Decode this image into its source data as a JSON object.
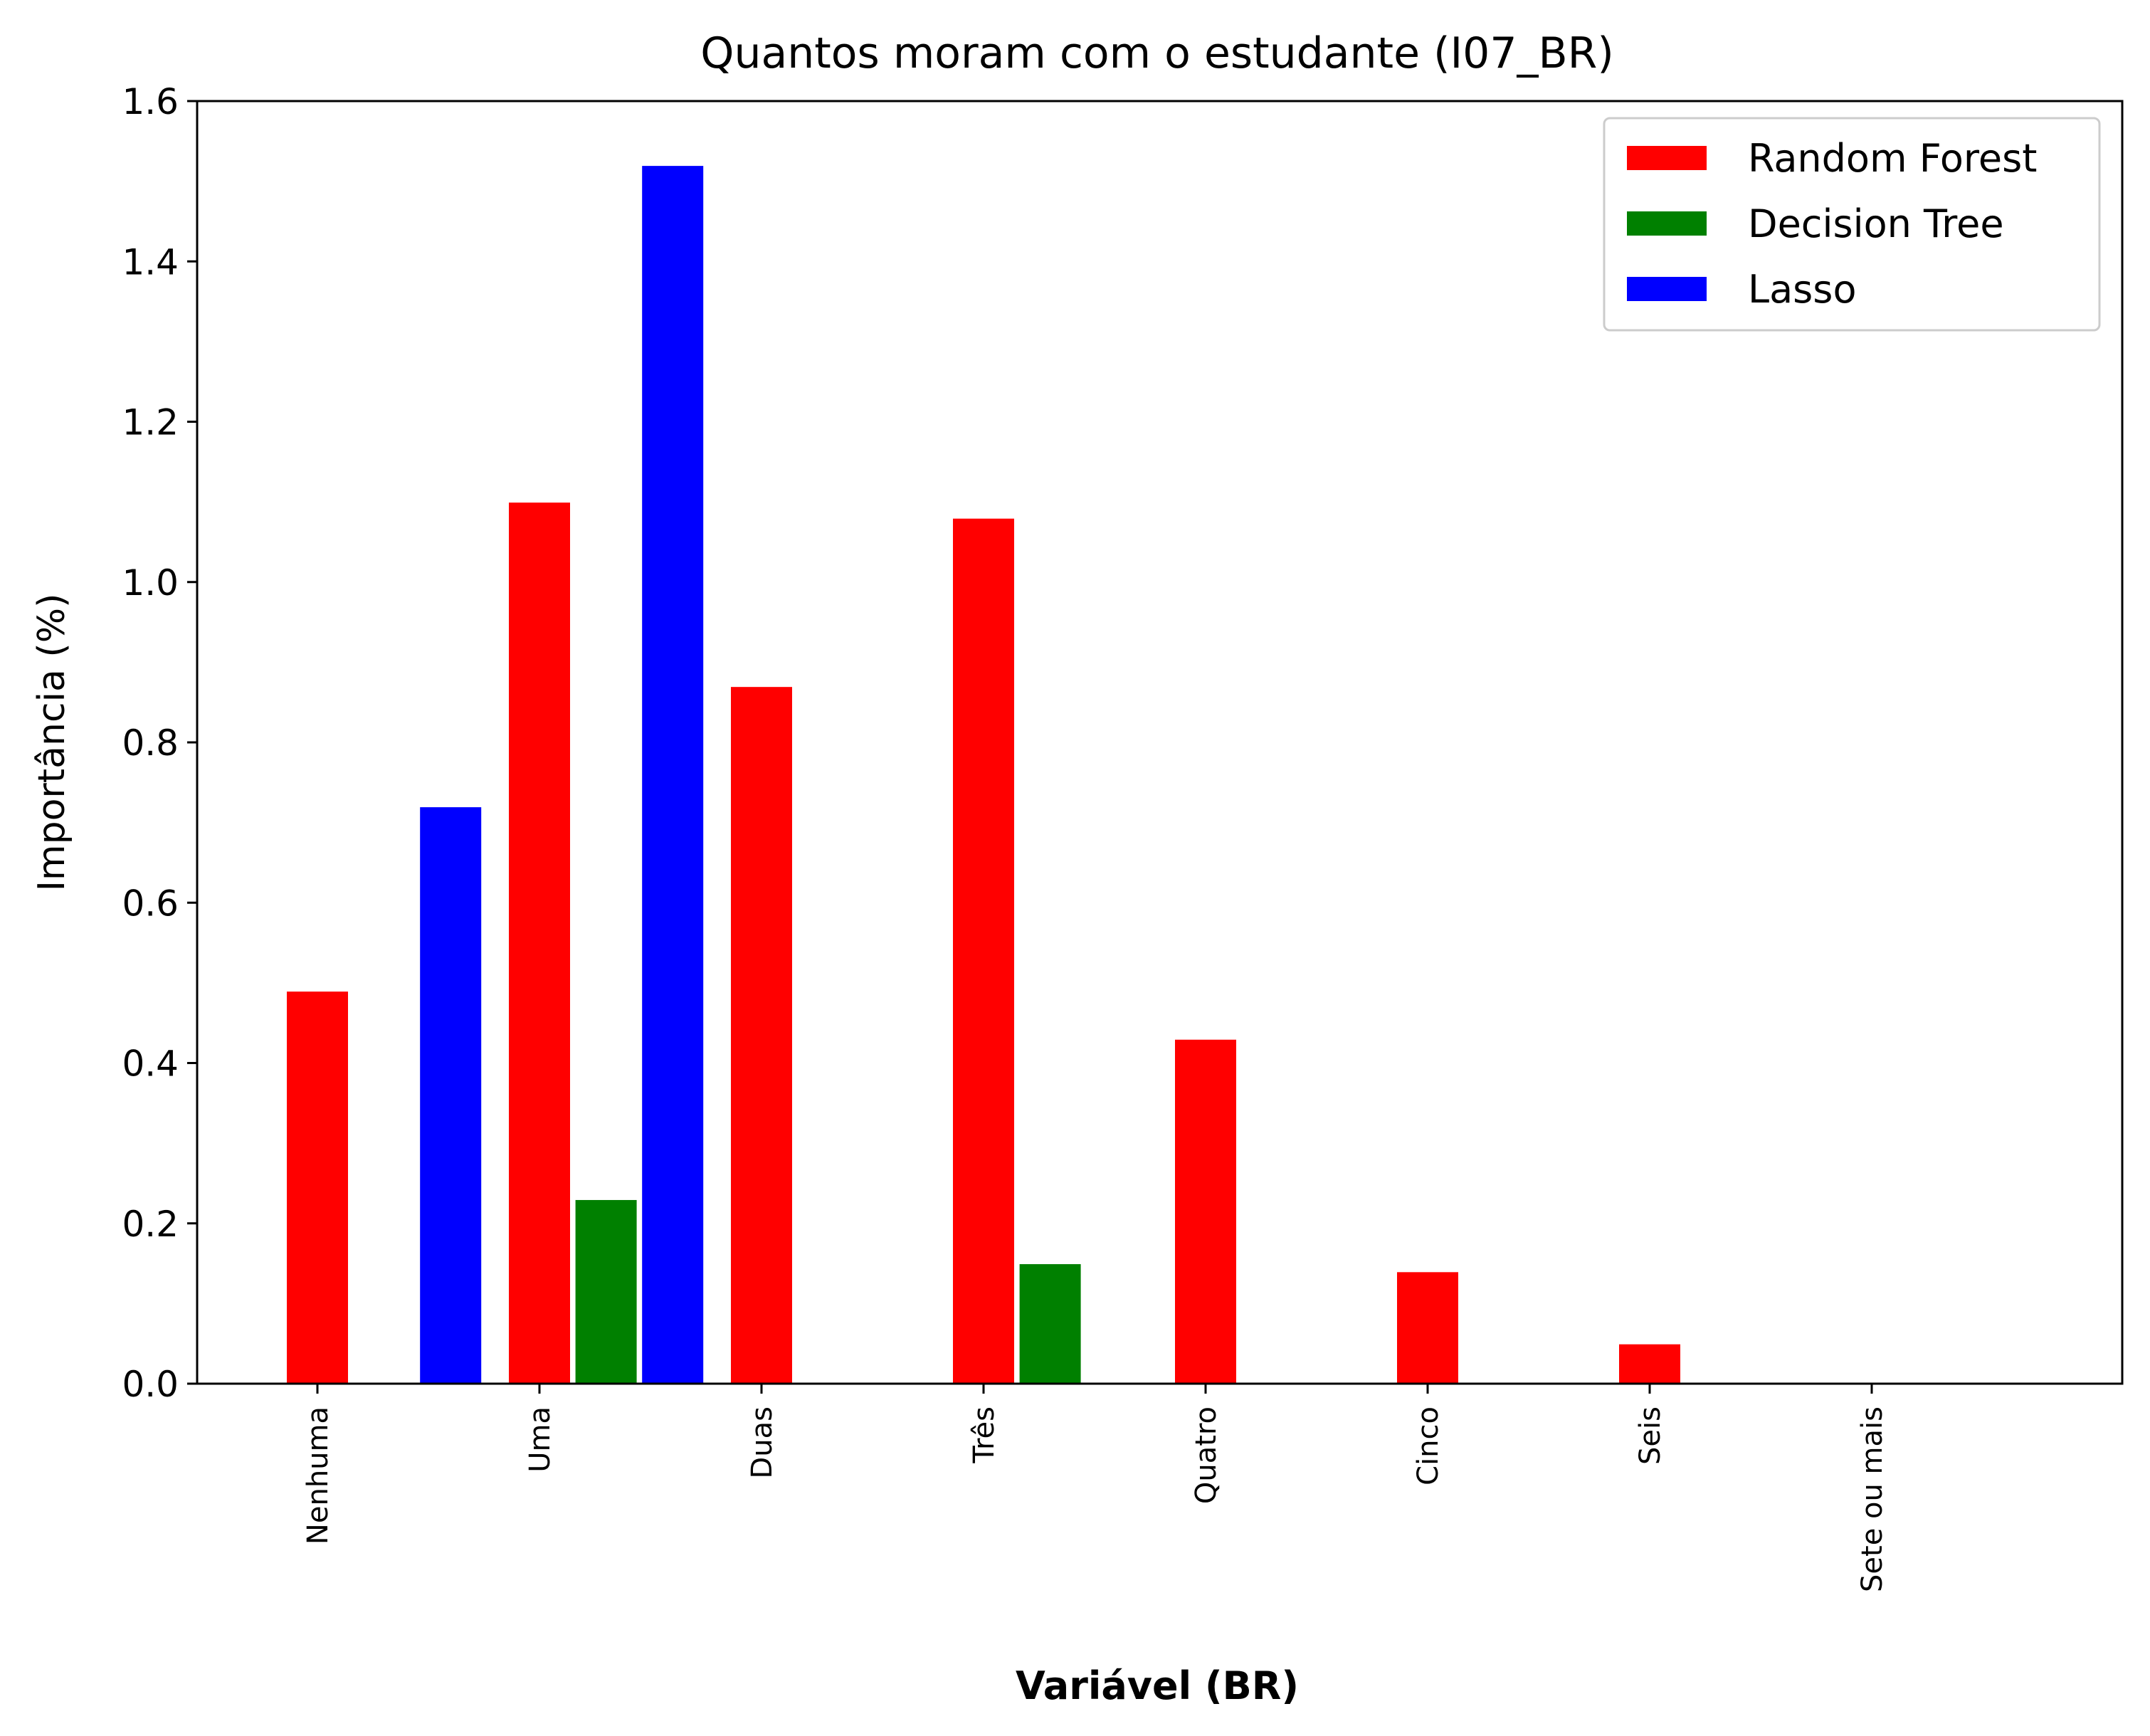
{
  "chart_data": {
    "type": "bar",
    "title": "Quantos moram com o estudante (I07_BR)",
    "xlabel": "Variável (BR)",
    "ylabel": "Importância (%)",
    "ylim": [
      0,
      1.6
    ],
    "yticks": [
      "0.0",
      "0.2",
      "0.4",
      "0.6",
      "0.8",
      "1.0",
      "1.2",
      "1.4",
      "1.6"
    ],
    "legend_position": "top-right",
    "grid": false,
    "categories": [
      "Nenhuma",
      "Uma",
      "Duas",
      "Três",
      "Quatro",
      "Cinco",
      "Seis",
      "Sete ou mais"
    ],
    "series": [
      {
        "name": "Random Forest",
        "color": "#ff0000",
        "bars": [
          {
            "x": 0,
            "value": 0.49
          },
          {
            "x": 1,
            "value": 1.1
          },
          {
            "x": 2,
            "value": 0.87
          },
          {
            "x": 3,
            "value": 1.08
          },
          {
            "x": 4,
            "value": 0.43
          },
          {
            "x": 5,
            "value": 0.14
          },
          {
            "x": 6,
            "value": 0.05
          }
        ]
      },
      {
        "name": "Decision Tree",
        "color": "#008000",
        "bars": [
          {
            "x": 1.3,
            "value": 0.23
          },
          {
            "x": 3.3,
            "value": 0.15
          }
        ]
      },
      {
        "name": "Lasso",
        "color": "#0000ff",
        "bars": [
          {
            "x": 0.6,
            "value": 0.72
          },
          {
            "x": 1.6,
            "value": 1.52
          }
        ]
      }
    ]
  }
}
